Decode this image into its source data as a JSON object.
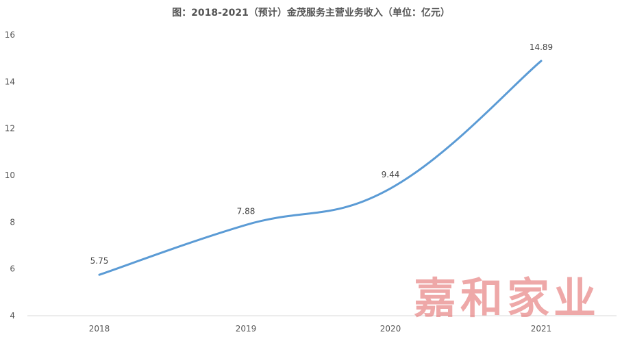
{
  "chart_data": {
    "type": "line",
    "title": "图：2018-2021（预计）金茂服务主营业务收入（单位：亿元）",
    "xlabel": "",
    "ylabel": "",
    "categories": [
      "2018",
      "2019",
      "2020",
      "2021"
    ],
    "values": [
      5.75,
      7.88,
      9.44,
      14.89
    ],
    "data_labels": [
      "5.75",
      "7.88",
      "9.44",
      "14.89"
    ],
    "ylim": [
      4,
      16
    ],
    "yticks": [
      4,
      6,
      8,
      10,
      12,
      14,
      16
    ],
    "grid": false,
    "legend": "none",
    "line_color": "#5b9bd5",
    "axis_color": "#d9d9d9"
  },
  "watermark": {
    "text": "嘉和家业",
    "color": "#e46f6f"
  }
}
